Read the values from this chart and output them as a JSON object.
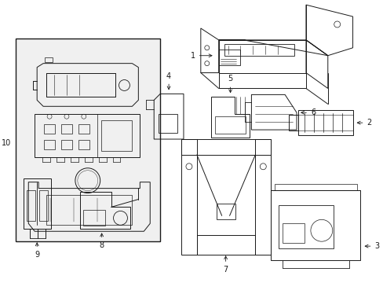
{
  "background_color": "#ffffff",
  "line_color": "#1a1a1a",
  "lw": 0.7,
  "fig_w": 4.89,
  "fig_h": 3.6,
  "dpi": 100
}
